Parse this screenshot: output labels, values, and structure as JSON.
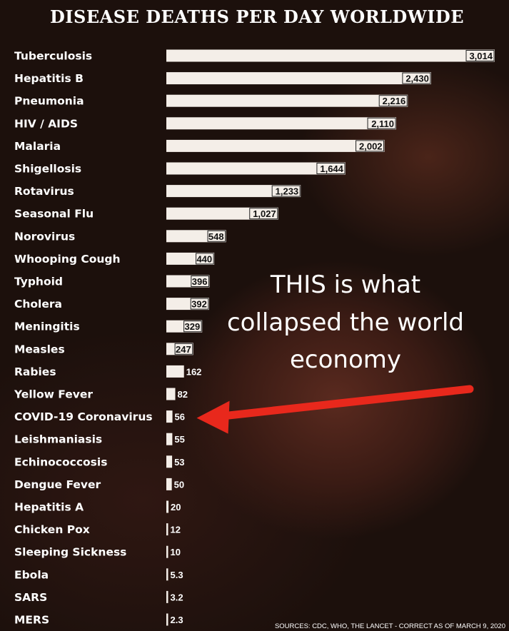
{
  "chart_data": {
    "type": "bar",
    "orientation": "horizontal",
    "title": "DISEASE DEATHS PER DAY WORLDWIDE",
    "categories": [
      "Tuberculosis",
      "Hepatitis B",
      "Pneumonia",
      "HIV / AIDS",
      "Malaria",
      "Shigellosis",
      "Rotavirus",
      "Seasonal Flu",
      "Norovirus",
      "Whooping Cough",
      "Typhoid",
      "Cholera",
      "Meningitis",
      "Measles",
      "Rabies",
      "Yellow Fever",
      "COVID-19 Coronavirus",
      "Leishmaniasis",
      "Echinococcosis",
      "Dengue Fever",
      "Hepatitis A",
      "Chicken Pox",
      "Sleeping Sickness",
      "Ebola",
      "SARS",
      "MERS"
    ],
    "values": [
      3014,
      2430,
      2216,
      2110,
      2002,
      1644,
      1233,
      1027,
      548,
      440,
      396,
      392,
      329,
      247,
      162,
      82,
      56,
      55,
      53,
      50,
      20,
      12,
      10,
      5.3,
      3.2,
      2.3
    ],
    "value_labels": [
      "3,014",
      "2,430",
      "2,216",
      "2,110",
      "2,002",
      "1,644",
      "1,233",
      "1,027",
      "548",
      "440",
      "396",
      "392",
      "329",
      "247",
      "162",
      "82",
      "56",
      "55",
      "53",
      "50",
      "20",
      "12",
      "10",
      "5.3",
      "3.2",
      "2.3"
    ],
    "xlim": [
      0,
      3014
    ],
    "grid": false,
    "legend": "none",
    "annotation": [
      "THIS is what",
      "collapsed the world",
      "economy"
    ],
    "annotation_target": "COVID-19 Coronavirus",
    "sources": "SOURCES: CDC, WHO, THE LANCET - CORRECT AS OF MARCH 9, 2020"
  },
  "colors": {
    "bar": "#f4eee8",
    "arrow": "#e8281c",
    "text": "#ffffff",
    "background": "#1c100c"
  }
}
